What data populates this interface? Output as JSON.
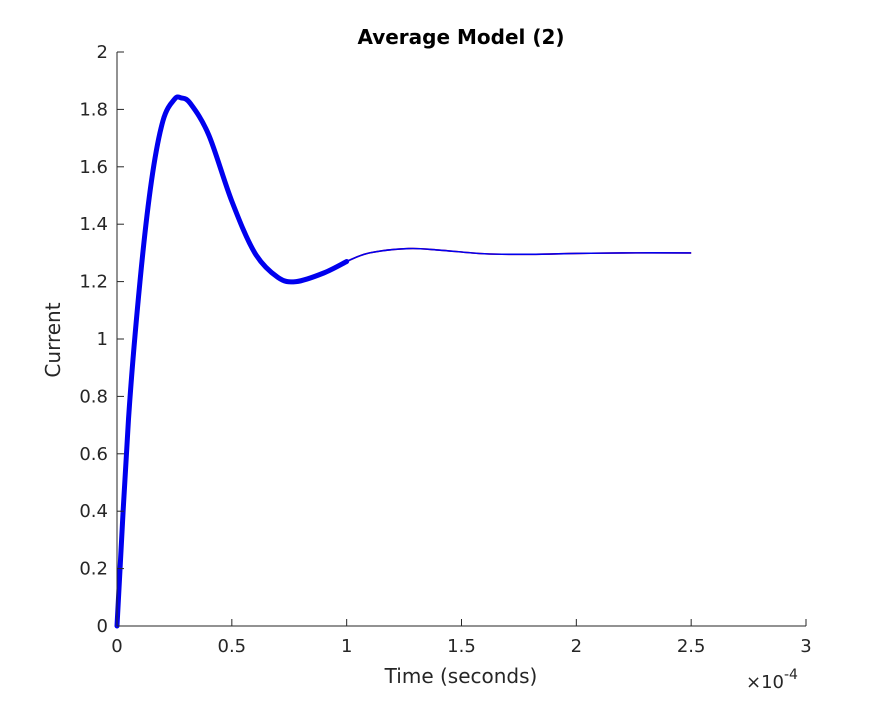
{
  "chart_data": {
    "type": "line",
    "title": "Average Model (2)",
    "xlabel": "Time (seconds)",
    "ylabel": "Current",
    "x_exponent_label": {
      "base": "×10",
      "exponent": "-4"
    },
    "xlim": [
      0,
      3
    ],
    "ylim": [
      0,
      2
    ],
    "x_ticks": [
      0,
      0.5,
      1,
      1.5,
      2,
      2.5,
      3
    ],
    "x_tick_labels": [
      "0",
      "0.5",
      "1",
      "1.5",
      "2",
      "2.5",
      "3"
    ],
    "y_ticks": [
      0,
      0.2,
      0.4,
      0.6,
      0.8,
      1,
      1.2,
      1.4,
      1.6,
      1.8,
      2
    ],
    "y_tick_labels": [
      "0",
      "0.2",
      "0.4",
      "0.6",
      "0.8",
      "1",
      "1.2",
      "1.4",
      "1.6",
      "1.8",
      "2"
    ],
    "grid": false,
    "legend": "none",
    "series": [
      {
        "color": "#ff0000",
        "band": 0,
        "x": [
          0,
          0.05,
          0.1,
          0.15,
          0.2,
          0.25,
          0.28,
          0.32,
          0.4,
          0.5,
          0.6,
          0.7,
          0.78,
          0.9,
          1.0,
          1.1,
          1.27,
          1.4,
          1.6,
          1.8,
          2.0,
          2.2,
          2.5
        ],
        "y": [
          0,
          0.72,
          1.2,
          1.55,
          1.76,
          1.835,
          1.84,
          1.82,
          1.71,
          1.48,
          1.3,
          1.215,
          1.2,
          1.23,
          1.27,
          1.3,
          1.315,
          1.31,
          1.297,
          1.295,
          1.298,
          1.3,
          1.3
        ]
      },
      {
        "color": "#0000ee",
        "band": 0.012,
        "x": [
          0,
          0.05,
          0.1,
          0.15,
          0.2,
          0.25,
          0.28,
          0.32,
          0.4,
          0.5,
          0.6,
          0.7,
          0.78,
          0.9,
          1.0,
          1.1,
          1.27,
          1.4,
          1.6,
          1.8,
          2.0,
          2.2,
          2.5
        ],
        "y": [
          0,
          0.72,
          1.2,
          1.55,
          1.76,
          1.835,
          1.84,
          1.82,
          1.71,
          1.48,
          1.3,
          1.215,
          1.2,
          1.23,
          1.27,
          1.3,
          1.315,
          1.31,
          1.297,
          1.295,
          1.298,
          1.3,
          1.3
        ]
      }
    ]
  }
}
